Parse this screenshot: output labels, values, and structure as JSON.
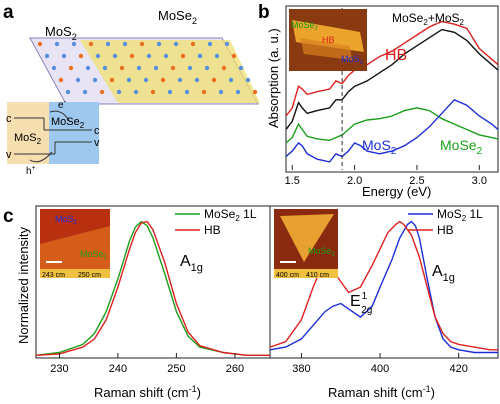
{
  "panel_labels": {
    "a": "a",
    "b": "b",
    "c": "c"
  },
  "panel_a": {
    "mos2_label": "MoS",
    "mos2_sub": "2",
    "mose2_label": "MoSe",
    "mose2_sub": "2",
    "band_c1": "c",
    "band_v1": "v",
    "band_c2": "c",
    "band_v2": "v",
    "band_mos2": "MoS",
    "band_mos2_sub": "2",
    "band_mose2": "MoSe",
    "band_mose2_sub": "2",
    "electron": "e",
    "electron_sup": "-",
    "hole": "h",
    "hole_sup": "+"
  },
  "colors": {
    "mose2": "#1a9e1a",
    "hb": "#e02020",
    "mos2": "#1c2ed8",
    "black": "#111111",
    "lattice_yellow": "#f0e070",
    "band_left": "#f5deb0",
    "band_right": "#9fc8ee"
  },
  "inset_b": {
    "mose2": "MoSe",
    "mose2_sub": "2",
    "hb": "HB",
    "mos2": "MoS",
    "mos2_sub": "2"
  },
  "inset_c1": {
    "mos2": "MoS",
    "mos2_sub": "2",
    "mose2": "MoSe",
    "mose2_sub": "2",
    "scale_left": "243 cm",
    "scale_right": "250 cm"
  },
  "inset_c2": {
    "mose2": "MoSe",
    "mose2_sub": "2",
    "scale_left": "400 cm",
    "scale_right": "410 cm"
  },
  "chart_data": [
    {
      "type": "line",
      "panel": "b",
      "xlabel": "Energy (eV)",
      "ylabel": "Absorption (a. u.)",
      "xlim": [
        1.45,
        3.15
      ],
      "xticks": [
        "1.5",
        "2.0",
        "2.5",
        "3.0"
      ],
      "dashed_line_x": 1.9,
      "annotations": {
        "hb": "HB",
        "mos2": "MoS",
        "mos2_sub": "2",
        "mose2": "MoSe",
        "mose2_sub": "2",
        "sum": "MoSe",
        "sum_mid": "2",
        "sum_tail": "+MoS",
        "sum_tail_sub": "2"
      },
      "series": [
        {
          "name": "HB",
          "color": "#e02020",
          "x": [
            1.45,
            1.5,
            1.55,
            1.58,
            1.62,
            1.7,
            1.8,
            1.85,
            1.9,
            1.95,
            2.0,
            2.1,
            2.2,
            2.3,
            2.4,
            2.5,
            2.6,
            2.7,
            2.8,
            2.9,
            3.0,
            3.1,
            3.15
          ],
          "y": [
            0.5,
            0.56,
            0.72,
            0.7,
            0.66,
            0.68,
            0.7,
            0.76,
            0.74,
            0.8,
            0.84,
            0.88,
            0.94,
            0.98,
            1.04,
            1.1,
            1.16,
            1.2,
            1.18,
            1.15,
            1.0,
            0.92,
            0.88
          ]
        },
        {
          "name": "MoSe2+MoS2",
          "color": "#111111",
          "x": [
            1.45,
            1.5,
            1.55,
            1.58,
            1.62,
            1.7,
            1.8,
            1.85,
            1.9,
            1.95,
            2.0,
            2.1,
            2.2,
            2.3,
            2.4,
            2.5,
            2.6,
            2.7,
            2.8,
            2.9,
            3.0,
            3.1,
            3.15
          ],
          "y": [
            0.4,
            0.46,
            0.6,
            0.56,
            0.52,
            0.54,
            0.56,
            0.62,
            0.62,
            0.68,
            0.72,
            0.76,
            0.82,
            0.88,
            0.96,
            1.02,
            1.08,
            1.14,
            1.12,
            1.06,
            0.96,
            0.88,
            0.84
          ]
        },
        {
          "name": "MoSe2",
          "color": "#1a9e1a",
          "x": [
            1.45,
            1.5,
            1.55,
            1.58,
            1.62,
            1.7,
            1.8,
            1.85,
            1.9,
            1.95,
            2.0,
            2.1,
            2.2,
            2.3,
            2.4,
            2.5,
            2.6,
            2.7,
            2.8,
            2.9,
            3.0,
            3.1,
            3.15
          ],
          "y": [
            0.3,
            0.34,
            0.44,
            0.4,
            0.35,
            0.33,
            0.32,
            0.34,
            0.36,
            0.4,
            0.44,
            0.47,
            0.48,
            0.5,
            0.54,
            0.56,
            0.54,
            0.48,
            0.44,
            0.4,
            0.36,
            0.34,
            0.33
          ]
        },
        {
          "name": "MoS2",
          "color": "#1c2ed8",
          "x": [
            1.45,
            1.5,
            1.55,
            1.58,
            1.62,
            1.7,
            1.8,
            1.85,
            1.9,
            1.95,
            2.0,
            2.05,
            2.1,
            2.2,
            2.3,
            2.4,
            2.5,
            2.6,
            2.7,
            2.8,
            2.9,
            3.0,
            3.1,
            3.15
          ],
          "y": [
            0.2,
            0.24,
            0.3,
            0.28,
            0.22,
            0.18,
            0.16,
            0.22,
            0.2,
            0.24,
            0.3,
            0.28,
            0.24,
            0.22,
            0.24,
            0.28,
            0.34,
            0.42,
            0.52,
            0.62,
            0.58,
            0.5,
            0.44,
            0.4
          ]
        }
      ]
    },
    {
      "type": "line",
      "panel": "c-left",
      "xlabel": "Raman shift (cm",
      "xlabel_sup": "-1",
      "xlabel_tail": ")",
      "ylabel": "Normalized intensity",
      "xlim": [
        226,
        266
      ],
      "xticks": [
        "230",
        "240",
        "250",
        "260"
      ],
      "peak_label": "A",
      "peak_label_sub": "1g",
      "legend": [
        {
          "name": "MoSe",
          "sub": "2",
          "tail": " 1L",
          "color": "#1a9e1a"
        },
        {
          "name": "HB",
          "sub": "",
          "tail": "",
          "color": "#e02020"
        }
      ],
      "series": [
        {
          "name": "MoSe2 1L",
          "color": "#1a9e1a",
          "x": [
            226,
            230,
            234,
            236,
            238,
            240,
            242,
            243,
            244,
            245,
            246,
            248,
            250,
            252,
            254,
            258,
            262,
            266
          ],
          "y": [
            0.02,
            0.04,
            0.1,
            0.18,
            0.34,
            0.58,
            0.86,
            0.96,
            1.0,
            0.97,
            0.88,
            0.62,
            0.34,
            0.16,
            0.08,
            0.04,
            0.02,
            0.02
          ]
        },
        {
          "name": "HB",
          "color": "#e02020",
          "x": [
            226,
            230,
            234,
            236,
            238,
            240,
            242,
            243,
            244,
            245,
            246,
            248,
            250,
            252,
            254,
            258,
            262,
            266
          ],
          "y": [
            0.02,
            0.03,
            0.08,
            0.14,
            0.28,
            0.52,
            0.8,
            0.92,
            0.99,
            1.0,
            0.94,
            0.7,
            0.4,
            0.19,
            0.09,
            0.04,
            0.02,
            0.02
          ]
        }
      ]
    },
    {
      "type": "line",
      "panel": "c-right",
      "xlabel": "Raman shift (cm",
      "xlabel_sup": "-1",
      "xlabel_tail": ")",
      "xlim": [
        372,
        430
      ],
      "xticks": [
        "380",
        "400",
        "420"
      ],
      "peak_e_label": "E",
      "peak_e_sup": "1",
      "peak_e_sub": "2g",
      "peak_a_label": "A",
      "peak_a_sub": "1g",
      "legend": [
        {
          "name": "MoS",
          "sub": "2",
          "tail": " 1L",
          "color": "#1c2ed8"
        },
        {
          "name": "HB",
          "sub": "",
          "tail": "",
          "color": "#e02020"
        }
      ],
      "series": [
        {
          "name": "MoS2 1L",
          "color": "#1c2ed8",
          "x": [
            372,
            376,
            380,
            383,
            386,
            388,
            390,
            392,
            395,
            398,
            400,
            403,
            405,
            407,
            408,
            409,
            410,
            412,
            414,
            416,
            418,
            420,
            424,
            428,
            430
          ],
          "y": [
            0.06,
            0.08,
            0.14,
            0.24,
            0.34,
            0.38,
            0.4,
            0.36,
            0.3,
            0.38,
            0.52,
            0.72,
            0.88,
            0.98,
            1.0,
            0.97,
            0.88,
            0.58,
            0.3,
            0.14,
            0.08,
            0.06,
            0.04,
            0.04,
            0.04
          ]
        },
        {
          "name": "HB",
          "color": "#e02020",
          "x": [
            372,
            376,
            380,
            383,
            385,
            386,
            387,
            388,
            390,
            392,
            395,
            398,
            400,
            402,
            404,
            405,
            406,
            408,
            410,
            412,
            414,
            416,
            418,
            420,
            424,
            428,
            430
          ],
          "y": [
            0.08,
            0.12,
            0.28,
            0.52,
            0.66,
            0.68,
            0.67,
            0.64,
            0.56,
            0.48,
            0.52,
            0.68,
            0.8,
            0.92,
            0.98,
            1.0,
            0.98,
            0.9,
            0.74,
            0.52,
            0.3,
            0.18,
            0.12,
            0.1,
            0.08,
            0.06,
            0.06
          ]
        }
      ]
    }
  ]
}
